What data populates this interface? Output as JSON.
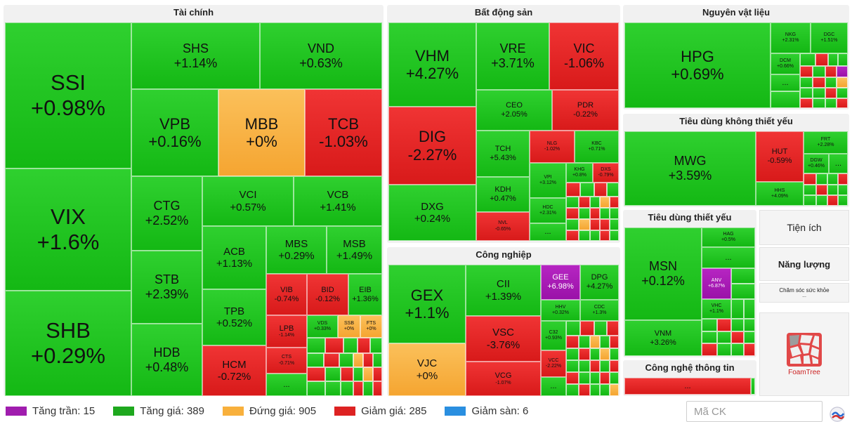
{
  "sectors": {
    "finance": "Tài chính",
    "realestate": "Bất động sản",
    "materials": "Nguyên vật liệu",
    "consumer_disc": "Tiêu dùng không thiết yếu",
    "consumer_staples": "Tiêu dùng thiết yếu",
    "industrial": "Công nghiệp",
    "utilities": "Tiện ích",
    "energy": "Năng lượng",
    "healthcare": "Chăm sóc sức khỏe",
    "it": "Công nghệ thông tin",
    "more": "..."
  },
  "stocks": {
    "SSI": {
      "code": "SSI",
      "pct": "+0.98%"
    },
    "VIX": {
      "code": "VIX",
      "pct": "+1.6%"
    },
    "SHB": {
      "code": "SHB",
      "pct": "+0.29%"
    },
    "SHS": {
      "code": "SHS",
      "pct": "+1.14%"
    },
    "VND": {
      "code": "VND",
      "pct": "+0.63%"
    },
    "VPB": {
      "code": "VPB",
      "pct": "+0.16%"
    },
    "MBB": {
      "code": "MBB",
      "pct": "+0%"
    },
    "TCB": {
      "code": "TCB",
      "pct": "-1.03%"
    },
    "CTG": {
      "code": "CTG",
      "pct": "+2.52%"
    },
    "VCI": {
      "code": "VCI",
      "pct": "+0.57%"
    },
    "VCB": {
      "code": "VCB",
      "pct": "+1.41%"
    },
    "STB": {
      "code": "STB",
      "pct": "+2.39%"
    },
    "ACB": {
      "code": "ACB",
      "pct": "+1.13%"
    },
    "MBS": {
      "code": "MBS",
      "pct": "+0.29%"
    },
    "MSB": {
      "code": "MSB",
      "pct": "+1.49%"
    },
    "TPB": {
      "code": "TPB",
      "pct": "+0.52%"
    },
    "VIB": {
      "code": "VIB",
      "pct": "-0.74%"
    },
    "BID": {
      "code": "BID",
      "pct": "-0.12%"
    },
    "EIB": {
      "code": "EIB",
      "pct": "+1.36%"
    },
    "LPB": {
      "code": "LPB",
      "pct": "-1.14%"
    },
    "VDS": {
      "code": "VDS",
      "pct": "+0.33%"
    },
    "SSB": {
      "code": "SSB",
      "pct": "+0%"
    },
    "FTS": {
      "code": "FTS",
      "pct": "+0%"
    },
    "HDB": {
      "code": "HDB",
      "pct": "+0.48%"
    },
    "HCM": {
      "code": "HCM",
      "pct": "-0.72%"
    },
    "CTS": {
      "code": "CTS",
      "pct": "-0.71%"
    },
    "VHM": {
      "code": "VHM",
      "pct": "+4.27%"
    },
    "VRE": {
      "code": "VRE",
      "pct": "+3.71%"
    },
    "VIC": {
      "code": "VIC",
      "pct": "-1.06%"
    },
    "CEO": {
      "code": "CEO",
      "pct": "+2.05%"
    },
    "PDR": {
      "code": "PDR",
      "pct": "-0.22%"
    },
    "DIG": {
      "code": "DIG",
      "pct": "-2.27%"
    },
    "TCH": {
      "code": "TCH",
      "pct": "+5.43%"
    },
    "NLG": {
      "code": "NLG",
      "pct": "-1.02%"
    },
    "KBC": {
      "code": "KBC",
      "pct": "+0.71%"
    },
    "VPI": {
      "code": "VPI",
      "pct": "+3.12%"
    },
    "KHG": {
      "code": "KHG",
      "pct": "+0.8%"
    },
    "DXS": {
      "code": "DXS",
      "pct": "-0.79%"
    },
    "DXG": {
      "code": "DXG",
      "pct": "+0.24%"
    },
    "KDH": {
      "code": "KDH",
      "pct": "+0.47%"
    },
    "HDC": {
      "code": "HDC",
      "pct": "+2.31%"
    },
    "NVL": {
      "code": "NVL",
      "pct": "-0.65%"
    },
    "GEX": {
      "code": "GEX",
      "pct": "+1.1%"
    },
    "CII": {
      "code": "CII",
      "pct": "+1.39%"
    },
    "GEE": {
      "code": "GEE",
      "pct": "+6.98%"
    },
    "DPG": {
      "code": "DPG",
      "pct": "+4.27%"
    },
    "HHV": {
      "code": "HHV",
      "pct": "+0.32%"
    },
    "CDC": {
      "code": "CDC",
      "pct": "+1.3%"
    },
    "VSC": {
      "code": "VSC",
      "pct": "-3.76%"
    },
    "C32": {
      "code": "C32",
      "pct": "+0.93%"
    },
    "VCC": {
      "code": "VCC",
      "pct": "-2.22%"
    },
    "VJC": {
      "code": "VJC",
      "pct": "+0%"
    },
    "VCG": {
      "code": "VCG",
      "pct": "-1.07%"
    },
    "HPG": {
      "code": "HPG",
      "pct": "+0.69%"
    },
    "NKG": {
      "code": "NKG",
      "pct": "+2.31%"
    },
    "DGC": {
      "code": "DGC",
      "pct": "+1.51%"
    },
    "DCM": {
      "code": "DCM",
      "pct": "+0.66%"
    },
    "MWG": {
      "code": "MWG",
      "pct": "+3.59%"
    },
    "HUT": {
      "code": "HUT",
      "pct": "-0.59%"
    },
    "FRT": {
      "code": "FRT",
      "pct": "+2.28%"
    },
    "DGW": {
      "code": "DGW",
      "pct": "+0.46%"
    },
    "HHS": {
      "code": "HHS",
      "pct": "+4.09%"
    },
    "MSN": {
      "code": "MSN",
      "pct": "+0.12%"
    },
    "HAG": {
      "code": "HAG",
      "pct": "+0.5%"
    },
    "ANV": {
      "code": "ANV",
      "pct": "+6.87%"
    },
    "VHC": {
      "code": "VHC",
      "pct": "+1.1%"
    },
    "VNM": {
      "code": "VNM",
      "pct": "+3.26%"
    }
  },
  "legend": [
    {
      "label": "Tăng trần: 15",
      "color": "#a01dae"
    },
    {
      "label": "Tăng giá: 389",
      "color": "#1ea81e"
    },
    {
      "label": "Đứng giá: 905",
      "color": "#f8b03c"
    },
    {
      "label": "Giảm giá: 285",
      "color": "#dd2222"
    },
    {
      "label": "Giảm sàn: 6",
      "color": "#2a8fe0"
    }
  ],
  "search": {
    "placeholder": "Mã CK"
  },
  "logo": {
    "text": "FoamTree"
  },
  "colors": {
    "up": "#1ec81e",
    "down": "#e02626",
    "ref": "#f8b03c",
    "ceiling": "#a01dae",
    "floor": "#2a8fe0"
  }
}
